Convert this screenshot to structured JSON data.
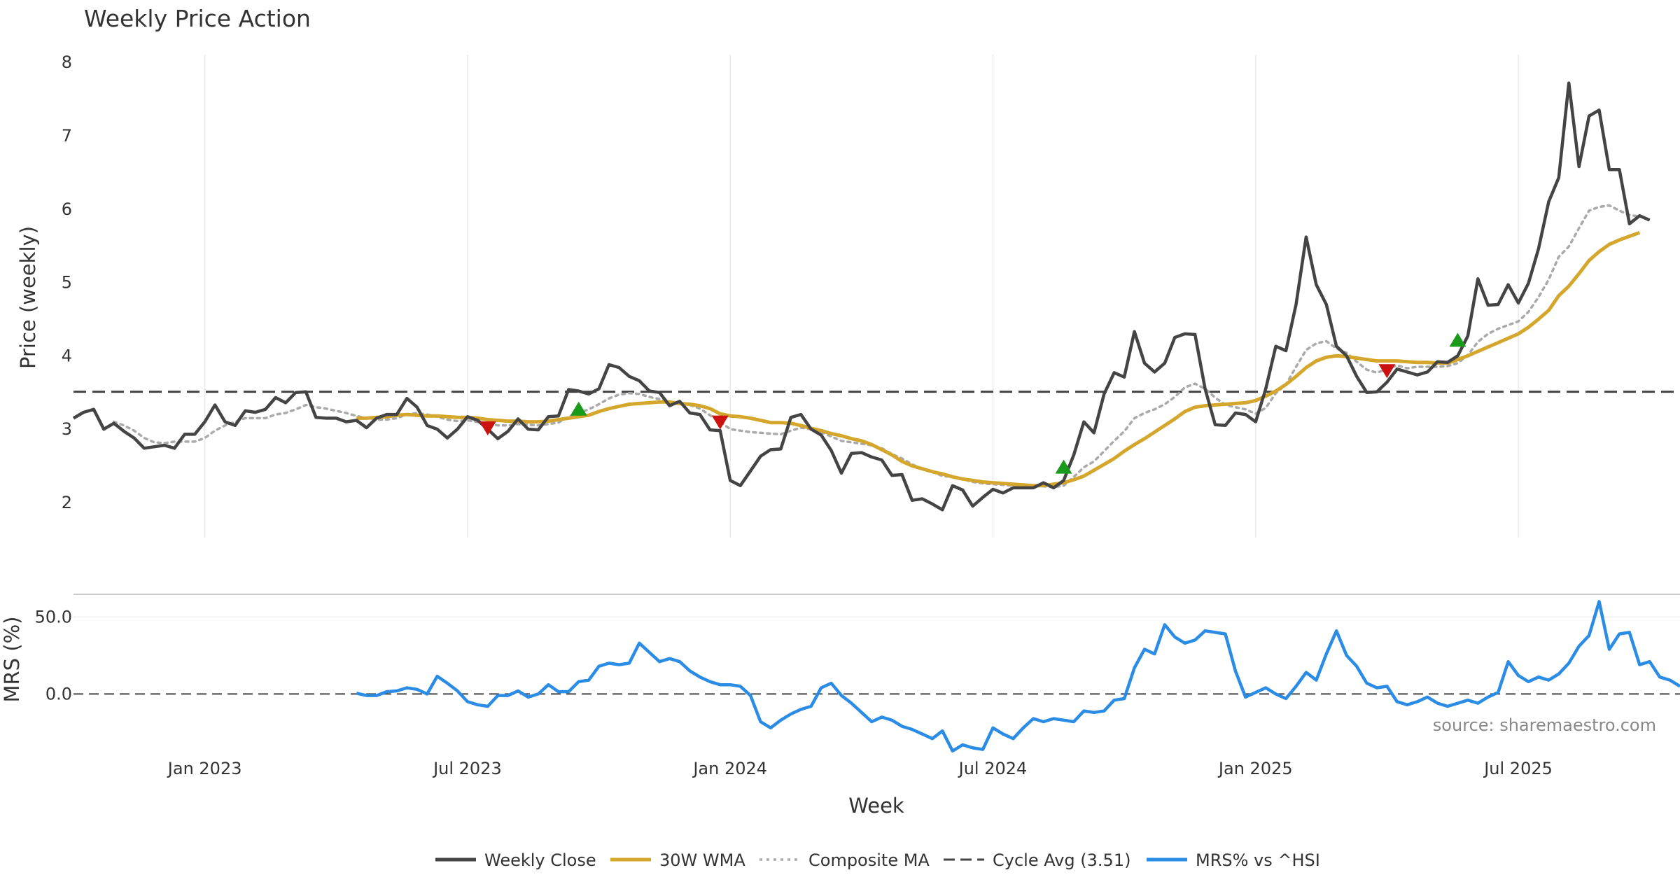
{
  "chart_data": {
    "type": "line",
    "title": "Weekly Price Action",
    "xlabel": "Week",
    "source": "source: sharemaestro.com",
    "colors": {
      "close": "#444444",
      "wma": "#d4a72c",
      "composite": "#aaaaaa",
      "cycle": "#444444",
      "mrs": "#2b8ce6",
      "buy": "#1a9a1a",
      "sell": "#cc1111",
      "grid": "#e9e9e9"
    },
    "x_ticks": [
      {
        "label": "Jan 2023",
        "week": 13
      },
      {
        "label": "Jul 2023",
        "week": 39
      },
      {
        "label": "Jan 2024",
        "week": 65
      },
      {
        "label": "Jul 2024",
        "week": 91
      },
      {
        "label": "Jan 2025",
        "week": 117
      },
      {
        "label": "Jul 2025",
        "week": 143
      }
    ],
    "x_range": [
      0,
      159
    ],
    "price_panel": {
      "ylabel": "Price (weekly)",
      "ylim": [
        1.55,
        8.05
      ],
      "yticks": [
        2,
        3,
        4,
        5,
        6,
        7,
        8
      ],
      "cycle_avg": 3.51,
      "close": [
        3.15,
        3.23,
        3.27,
        3.0,
        3.08,
        2.97,
        2.88,
        2.74,
        2.76,
        2.78,
        2.74,
        2.93,
        2.93,
        3.1,
        3.33,
        3.1,
        3.05,
        3.25,
        3.23,
        3.27,
        3.43,
        3.36,
        3.5,
        3.51,
        3.16,
        3.15,
        3.15,
        3.1,
        3.12,
        3.02,
        3.15,
        3.2,
        3.2,
        3.42,
        3.3,
        3.05,
        3.0,
        2.88,
        3.0,
        3.17,
        3.12,
        3.0,
        2.87,
        2.97,
        3.14,
        3.0,
        2.99,
        3.17,
        3.18,
        3.54,
        3.52,
        3.48,
        3.55,
        3.88,
        3.84,
        3.72,
        3.66,
        3.52,
        3.5,
        3.32,
        3.38,
        3.22,
        3.2,
        2.99,
        2.98,
        2.3,
        2.23,
        2.43,
        2.63,
        2.72,
        2.73,
        3.16,
        3.2,
        3.0,
        2.92,
        2.71,
        2.4,
        2.67,
        2.68,
        2.62,
        2.58,
        2.37,
        2.38,
        2.03,
        2.05,
        1.98,
        1.9,
        2.23,
        2.17,
        1.95,
        2.07,
        2.18,
        2.13,
        2.2,
        2.2,
        2.2,
        2.27,
        2.2,
        2.3,
        2.65,
        3.1,
        2.95,
        3.48,
        3.77,
        3.71,
        4.33,
        3.9,
        3.78,
        3.9,
        4.25,
        4.3,
        4.29,
        3.55,
        3.06,
        3.05,
        3.22,
        3.2,
        3.1,
        3.55,
        4.13,
        4.07,
        4.7,
        5.62,
        4.97,
        4.7,
        4.13,
        4.0,
        3.72,
        3.5,
        3.51,
        3.64,
        3.82,
        3.78,
        3.74,
        3.78,
        3.92,
        3.91,
        4.0,
        4.27,
        5.05,
        4.69,
        4.7,
        4.97,
        4.72,
        4.99,
        5.46,
        6.1,
        6.43,
        7.72,
        6.58,
        7.27,
        7.35,
        6.54,
        6.54,
        5.8,
        5.91,
        5.85
      ],
      "wma": [
        null,
        null,
        null,
        null,
        null,
        null,
        null,
        null,
        null,
        null,
        null,
        null,
        null,
        null,
        null,
        null,
        null,
        null,
        null,
        null,
        null,
        null,
        null,
        null,
        null,
        null,
        null,
        null,
        3.15,
        3.15,
        3.16,
        3.17,
        3.19,
        3.2,
        3.19,
        3.18,
        3.18,
        3.17,
        3.16,
        3.16,
        3.15,
        3.13,
        3.12,
        3.11,
        3.11,
        3.1,
        3.1,
        3.11,
        3.13,
        3.15,
        3.17,
        3.19,
        3.24,
        3.28,
        3.31,
        3.34,
        3.35,
        3.36,
        3.37,
        3.37,
        3.35,
        3.34,
        3.32,
        3.28,
        3.21,
        3.18,
        3.17,
        3.15,
        3.12,
        3.09,
        3.09,
        3.08,
        3.05,
        3.01,
        2.98,
        2.94,
        2.91,
        2.87,
        2.84,
        2.79,
        2.72,
        2.65,
        2.56,
        2.5,
        2.46,
        2.42,
        2.39,
        2.35,
        2.32,
        2.3,
        2.28,
        2.27,
        2.26,
        2.25,
        2.24,
        2.23,
        2.23,
        2.25,
        2.27,
        2.31,
        2.36,
        2.44,
        2.52,
        2.6,
        2.7,
        2.79,
        2.87,
        2.96,
        3.05,
        3.14,
        3.24,
        3.3,
        3.32,
        3.33,
        3.34,
        3.35,
        3.36,
        3.39,
        3.45,
        3.52,
        3.61,
        3.72,
        3.84,
        3.93,
        3.98,
        4.0,
        3.99,
        3.97,
        3.95,
        3.93,
        3.93,
        3.93,
        3.92,
        3.91,
        3.91,
        3.9,
        3.9,
        3.95,
        4.0,
        4.06,
        4.12,
        4.18,
        4.24,
        4.3,
        4.39,
        4.5,
        4.62,
        4.82,
        4.95,
        5.12,
        5.3,
        5.42,
        5.52,
        5.58,
        5.63,
        5.68
      ],
      "composite": [
        null,
        null,
        null,
        null,
        3.1,
        3.05,
        2.98,
        2.88,
        2.82,
        2.81,
        2.83,
        2.83,
        2.83,
        2.88,
        2.98,
        3.05,
        3.1,
        3.15,
        3.15,
        3.15,
        3.2,
        3.22,
        3.27,
        3.33,
        3.3,
        3.28,
        3.25,
        3.22,
        3.18,
        3.15,
        3.13,
        3.13,
        3.15,
        3.2,
        3.22,
        3.2,
        3.17,
        3.13,
        3.11,
        3.12,
        3.1,
        3.08,
        3.05,
        3.05,
        3.07,
        3.06,
        3.05,
        3.07,
        3.09,
        3.17,
        3.22,
        3.27,
        3.34,
        3.42,
        3.47,
        3.49,
        3.48,
        3.44,
        3.41,
        3.36,
        3.37,
        3.33,
        3.28,
        3.19,
        3.1,
        3.0,
        2.98,
        2.96,
        2.95,
        2.94,
        2.93,
        2.98,
        3.02,
        3.0,
        2.96,
        2.9,
        2.84,
        2.82,
        2.8,
        2.78,
        2.74,
        2.66,
        2.6,
        2.52,
        2.46,
        2.42,
        2.36,
        2.35,
        2.32,
        2.28,
        2.26,
        2.25,
        2.24,
        2.23,
        2.22,
        2.22,
        2.22,
        2.21,
        2.23,
        2.35,
        2.48,
        2.56,
        2.7,
        2.84,
        2.97,
        3.15,
        3.22,
        3.27,
        3.34,
        3.44,
        3.57,
        3.62,
        3.55,
        3.43,
        3.33,
        3.3,
        3.27,
        3.21,
        3.29,
        3.49,
        3.61,
        3.85,
        4.08,
        4.17,
        4.2,
        4.1,
        4.04,
        3.92,
        3.81,
        3.77,
        3.82,
        3.87,
        3.83,
        3.85,
        3.85,
        3.85,
        3.86,
        3.9,
        4.01,
        4.19,
        4.3,
        4.37,
        4.42,
        4.47,
        4.6,
        4.8,
        5.04,
        5.35,
        5.49,
        5.74,
        5.98,
        6.03,
        6.05,
        5.98,
        5.92,
        5.9
      ],
      "buy_signals": [
        {
          "week": 50,
          "price": 3.27
        },
        {
          "week": 98,
          "price": 2.48
        },
        {
          "week": 137,
          "price": 4.21
        }
      ],
      "sell_signals": [
        {
          "week": 41,
          "price": 3.02
        },
        {
          "week": 64,
          "price": 3.1
        },
        {
          "week": 130,
          "price": 3.8
        }
      ]
    },
    "mrs_panel": {
      "ylabel": "MRS (%)",
      "ylim": [
        -38,
        62
      ],
      "yticks": [
        {
          "label": "0.0",
          "value": 0
        },
        {
          "label": "50.0",
          "value": 50
        }
      ],
      "zero_line": 0,
      "values": [
        null,
        null,
        null,
        null,
        null,
        null,
        null,
        null,
        null,
        null,
        null,
        null,
        null,
        null,
        null,
        null,
        null,
        null,
        null,
        null,
        null,
        null,
        null,
        null,
        null,
        null,
        null,
        null,
        0.5,
        -1,
        -1,
        1.5,
        2,
        4,
        3,
        0,
        11.5,
        7,
        2,
        -5,
        -7,
        -8,
        -1,
        -1,
        2,
        -2,
        0,
        6,
        1.5,
        1.5,
        8,
        9,
        18,
        20,
        19,
        20,
        33,
        27,
        21,
        23,
        21,
        15,
        11,
        8,
        6,
        6,
        5,
        -1,
        -18,
        -22,
        -17,
        -13,
        -10,
        -8,
        4,
        7,
        -1,
        -6,
        -12,
        -18,
        -15,
        -17,
        -21,
        -23,
        -26,
        -29,
        -24,
        -37,
        -33,
        -35,
        -36,
        -22,
        -26,
        -29,
        -22,
        -16,
        -18,
        -16,
        -17,
        -18,
        -11,
        -12,
        -11,
        -4,
        -3,
        17,
        29,
        26,
        45,
        37,
        33,
        35,
        41,
        40,
        39,
        15,
        -2,
        1,
        4,
        0,
        -3,
        5,
        14,
        9,
        26,
        41,
        25,
        18,
        7,
        4,
        5,
        -5,
        -7,
        -5,
        -2,
        -6,
        -8,
        -6,
        -4,
        -6,
        -2,
        1,
        21,
        12,
        8,
        11,
        9,
        13,
        20,
        31,
        38,
        60,
        29,
        39,
        40,
        19,
        21,
        11,
        9,
        5
      ],
      "series_name": "MRS% vs ^HSI"
    },
    "legend": [
      {
        "label": "Weekly Close",
        "style": "solid-dark"
      },
      {
        "label": "30W WMA",
        "style": "solid-gold"
      },
      {
        "label": "Composite MA",
        "style": "dotted-grey"
      },
      {
        "label": "Cycle Avg (3.51)",
        "style": "dashed-dark"
      },
      {
        "label": "MRS% vs ^HSI",
        "style": "solid-blue"
      }
    ]
  }
}
